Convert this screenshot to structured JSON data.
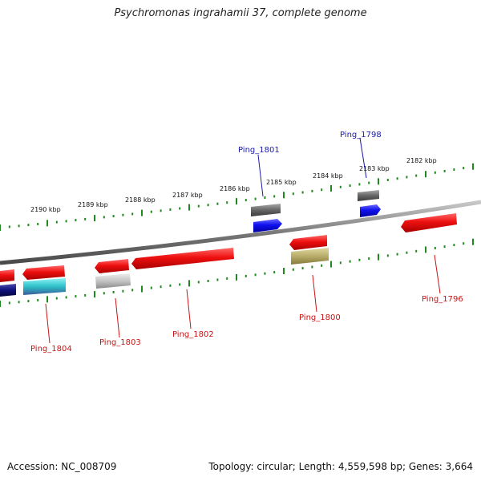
{
  "title": "Psychromonas ingrahamii 37, complete genome",
  "footer": {
    "accession": "Accession: NC_008709",
    "summary": "Topology: circular; Length: 4,559,598 bp; Genes: 3,664"
  },
  "colors": {
    "backbone": "#7a7a7a",
    "ticks": "#1e8a1e",
    "label_forward": "#1a1aa8",
    "label_reverse": "#c81414",
    "gene_red": "#e81010",
    "gene_blue": "#1010e8",
    "gene_gray": "#6a6a6a",
    "gene_lightgray": "#bdbdbd",
    "gene_olive": "#b8ad6a",
    "gene_cyan": "#38c8d0",
    "gene_navy": "#10107a"
  },
  "scale_labels": [
    "2190 kbp",
    "2189 kbp",
    "2188 kbp",
    "2187 kbp",
    "2186 kbp",
    "2185 kbp",
    "2184 kbp",
    "2183 kbp",
    "2182 kbp"
  ],
  "gene_labels": [
    {
      "text": "Ping_1801",
      "strand": "forward"
    },
    {
      "text": "Ping_1798",
      "strand": "forward"
    },
    {
      "text": "Ping_1804",
      "strand": "reverse"
    },
    {
      "text": "Ping_1803",
      "strand": "reverse"
    },
    {
      "text": "Ping_1802",
      "strand": "reverse"
    },
    {
      "text": "Ping_1800",
      "strand": "reverse"
    },
    {
      "text": "Ping_1796",
      "strand": "reverse"
    }
  ]
}
